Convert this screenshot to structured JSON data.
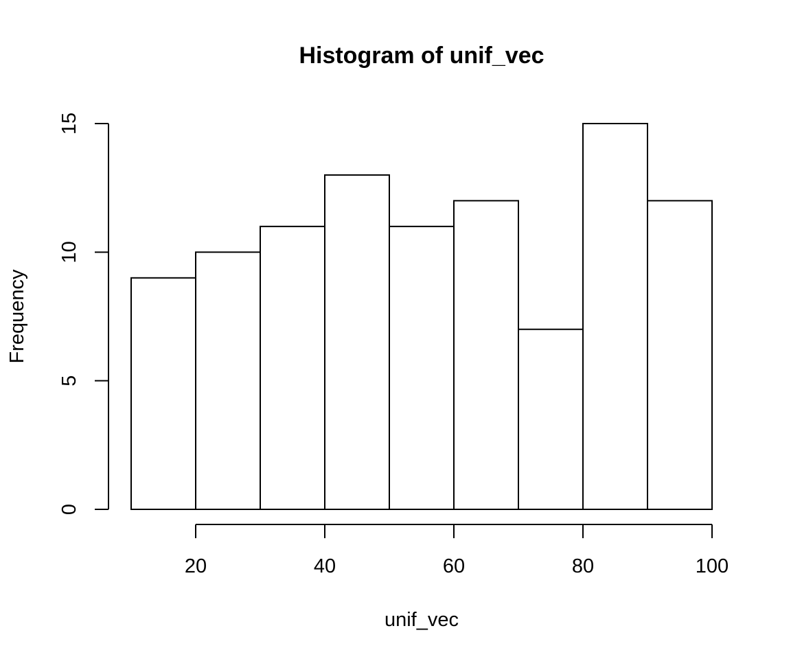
{
  "chart_data": {
    "type": "bar",
    "title": "Histogram of unif_vec",
    "xlabel": "unif_vec",
    "ylabel": "Frequency",
    "bins": [
      {
        "from": 10,
        "to": 20,
        "count": 9
      },
      {
        "from": 20,
        "to": 30,
        "count": 10
      },
      {
        "from": 30,
        "to": 40,
        "count": 11
      },
      {
        "from": 40,
        "to": 50,
        "count": 13
      },
      {
        "from": 50,
        "to": 60,
        "count": 11
      },
      {
        "from": 60,
        "to": 70,
        "count": 12
      },
      {
        "from": 70,
        "to": 80,
        "count": 7
      },
      {
        "from": 80,
        "to": 90,
        "count": 15
      },
      {
        "from": 90,
        "to": 100,
        "count": 12
      }
    ],
    "xlim": [
      10,
      100
    ],
    "ylim": [
      0,
      15
    ],
    "x_ticks": [
      20,
      40,
      60,
      80,
      100
    ],
    "y_ticks": [
      0,
      5,
      10,
      15
    ],
    "grid": false,
    "legend": "none",
    "bar_fill": "#ffffff",
    "stroke_color": "#000000"
  }
}
